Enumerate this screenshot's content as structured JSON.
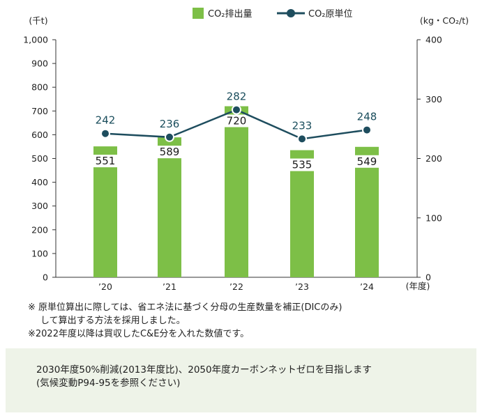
{
  "chart_data": {
    "type": "bar",
    "categories": [
      "’20",
      "’21",
      "’22",
      "’23",
      "’24"
    ],
    "x_unit": "(年度)",
    "series": [
      {
        "name": "CO₂排出量",
        "kind": "bar",
        "axis": "left",
        "color": "#7dbf47",
        "values": [
          551,
          589,
          720,
          535,
          549
        ]
      },
      {
        "name": "CO₂原単位",
        "kind": "line",
        "axis": "right",
        "color": "#1e4d5e",
        "values": [
          242,
          236,
          282,
          233,
          248
        ]
      }
    ],
    "y_left": {
      "unit": "(千t)",
      "ylim": [
        0,
        1000
      ],
      "ticks": [
        "0",
        "100",
        "200",
        "300",
        "400",
        "500",
        "600",
        "700",
        "800",
        "900",
        "1,000"
      ]
    },
    "y_right": {
      "unit": "(kg・CO₂/t)",
      "ylim": [
        0,
        400
      ],
      "ticks": [
        "0",
        "100",
        "200",
        "300",
        "400"
      ]
    },
    "grid": false,
    "legend": "top"
  },
  "notes": {
    "line1": "※ 原単位算出に際しては、省エネ法に基づく分母の生産数量を補正(DICのみ)",
    "line2": "して算出する方法を採用しました。",
    "line3": "※2022年度以降は買収したC&E分を入れた数値です。"
  },
  "goal": {
    "line1": "2030年度50%削減(2013年度比)、2050年度カーボンネットゼロを目指します",
    "line2": "(気候変動P94-95を参照ください)"
  }
}
